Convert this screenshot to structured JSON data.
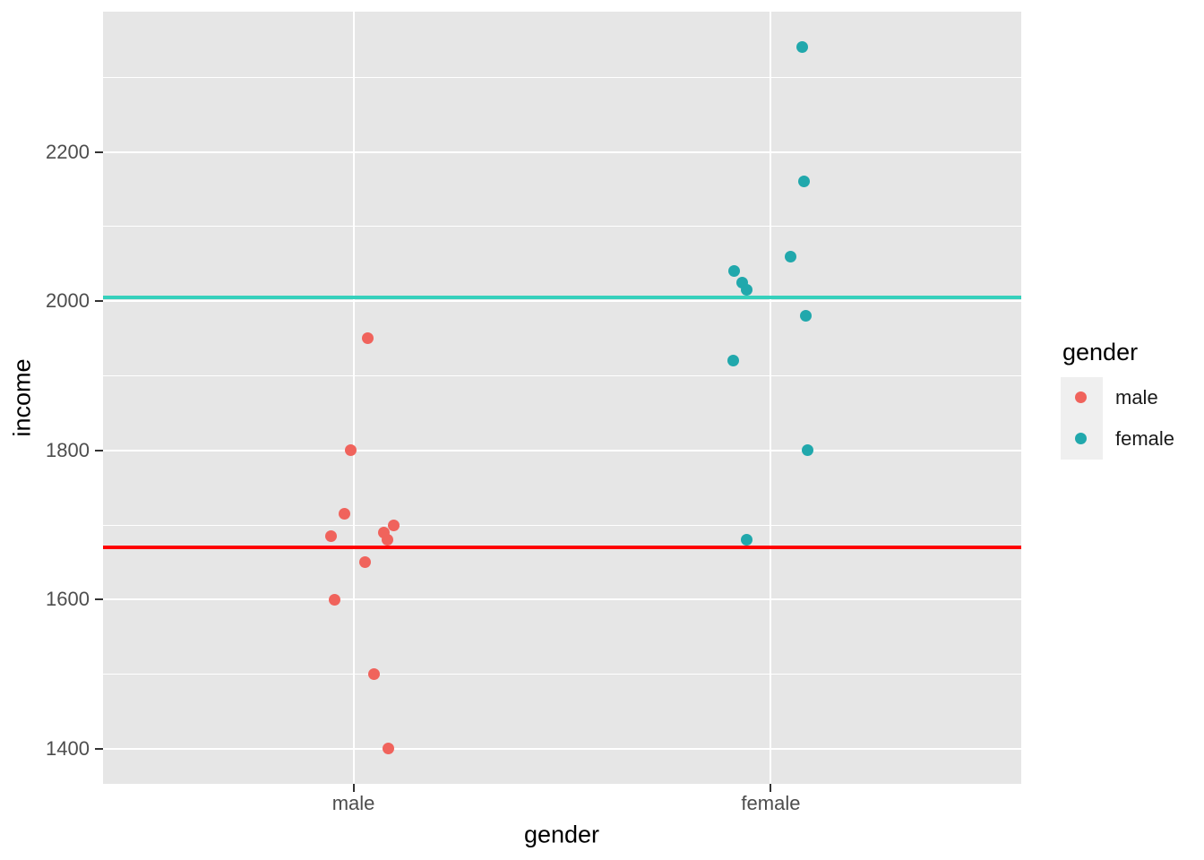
{
  "figure": {
    "x_axis_title": "gender",
    "y_axis_title": "income"
  },
  "chart_data": {
    "type": "scatter",
    "subtype": "jittered strip plot (ggplot2 style)",
    "title": "",
    "xlabel": "gender",
    "ylabel": "income",
    "categories": [
      "male",
      "female"
    ],
    "ylim": [
      1353,
      2388
    ],
    "y_major_ticks": [
      1400,
      1600,
      1800,
      2000,
      2200
    ],
    "y_minor_gridlines": [
      1500,
      1700,
      1900,
      2100,
      2300
    ],
    "grid": "white major and minor gridlines on gray panel",
    "panel_color": "#E6E6E6",
    "legend": {
      "title": "gender",
      "position": "right",
      "entries": [
        "male",
        "female"
      ]
    },
    "series": [
      {
        "name": "male",
        "color": "#F0635C",
        "points": [
          {
            "income": 1950,
            "dx": 16
          },
          {
            "income": 1800,
            "dx": -3
          },
          {
            "income": 1715,
            "dx": -10
          },
          {
            "income": 1700,
            "dx": 45
          },
          {
            "income": 1690,
            "dx": 34
          },
          {
            "income": 1685,
            "dx": -25
          },
          {
            "income": 1680,
            "dx": 38
          },
          {
            "income": 1650,
            "dx": 13
          },
          {
            "income": 1600,
            "dx": -21
          },
          {
            "income": 1500,
            "dx": 23
          },
          {
            "income": 1400,
            "dx": 39
          }
        ]
      },
      {
        "name": "female",
        "color": "#21A8AC",
        "points": [
          {
            "income": 2340,
            "dx": 35
          },
          {
            "income": 2160,
            "dx": 37
          },
          {
            "income": 2060,
            "dx": 22
          },
          {
            "income": 2040,
            "dx": -41
          },
          {
            "income": 2025,
            "dx": -32
          },
          {
            "income": 2015,
            "dx": -27
          },
          {
            "income": 1980,
            "dx": 39
          },
          {
            "income": 1920,
            "dx": -42
          },
          {
            "income": 1800,
            "dx": 41
          },
          {
            "income": 1680,
            "dx": -27
          }
        ]
      }
    ],
    "hlines": [
      {
        "value": 1670,
        "color": "#FF0000"
      },
      {
        "value": 2005,
        "color": "#36D0BC"
      }
    ]
  }
}
